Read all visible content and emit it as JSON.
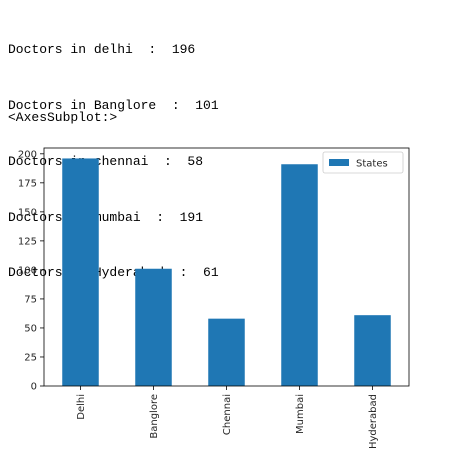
{
  "output": {
    "lines": [
      "Doctors in delhi  :  196",
      "Doctors in Banglore  :  101",
      "Doctors in chennai  :  58",
      "Doctors in mumbai  :  191",
      "Doctors in Hyderabad  :  61"
    ],
    "repr": "<AxesSubplot:>"
  },
  "chart_data": {
    "type": "bar",
    "categories": [
      "Delhi",
      "Banglore",
      "Chennai",
      "Mumbai",
      "Hyderabad"
    ],
    "series": [
      {
        "name": "States",
        "values": [
          196,
          101,
          58,
          191,
          61
        ]
      }
    ],
    "yticks": [
      "0",
      "25",
      "50",
      "75",
      "100",
      "125",
      "150",
      "175",
      "200"
    ],
    "ylim": [
      0,
      205
    ],
    "legend": "top-right",
    "grid": false,
    "colors": {
      "bar": "#1f77b4",
      "axis": "#000000",
      "text": "#262626"
    }
  }
}
